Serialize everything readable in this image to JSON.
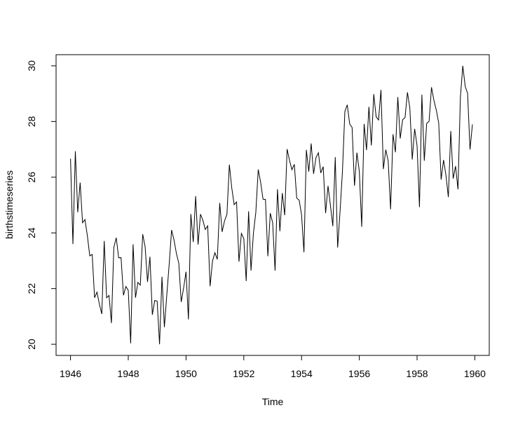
{
  "chart_data": {
    "type": "line",
    "title": "",
    "xlabel": "Time",
    "ylabel": "birthstimeseries",
    "xlim": [
      1945.5,
      1960.5
    ],
    "ylim": [
      19.6,
      30.4
    ],
    "x_ticks": [
      1946,
      1948,
      1950,
      1952,
      1954,
      1956,
      1958,
      1960
    ],
    "x_tick_labels": [
      "1946",
      "1948",
      "1950",
      "1952",
      "1954",
      "1956",
      "1958",
      "1960"
    ],
    "y_ticks": [
      20,
      22,
      24,
      26,
      28,
      30
    ],
    "y_tick_labels": [
      "20",
      "22",
      "24",
      "26",
      "28",
      "30"
    ],
    "grid": false,
    "line_color": "#000000",
    "series": [
      {
        "x_start": 1946,
        "frequency": 12,
        "values": [
          26.663,
          23.598,
          26.931,
          24.74,
          25.806,
          24.364,
          24.477,
          23.901,
          23.175,
          23.227,
          21.672,
          21.87,
          21.439,
          21.089,
          23.709,
          21.669,
          21.752,
          20.761,
          23.479,
          23.824,
          23.105,
          23.11,
          21.759,
          22.073,
          21.937,
          20.035,
          23.59,
          21.672,
          22.222,
          22.123,
          23.95,
          23.504,
          22.238,
          23.142,
          21.059,
          21.573,
          21.548,
          20.0,
          22.424,
          20.615,
          21.761,
          22.874,
          24.104,
          23.748,
          23.262,
          22.907,
          21.519,
          22.025,
          22.604,
          20.894,
          24.677,
          23.673,
          25.32,
          23.583,
          24.671,
          24.454,
          24.122,
          24.252,
          22.084,
          22.991,
          23.287,
          23.049,
          25.076,
          24.037,
          24.43,
          24.667,
          26.451,
          25.618,
          25.014,
          25.11,
          22.964,
          23.981,
          23.798,
          22.27,
          24.775,
          22.646,
          23.988,
          24.737,
          26.276,
          25.816,
          25.21,
          25.199,
          23.162,
          24.707,
          24.364,
          22.644,
          25.565,
          24.062,
          25.431,
          24.635,
          27.009,
          26.606,
          26.268,
          26.462,
          25.246,
          25.18,
          24.657,
          23.304,
          26.982,
          26.199,
          27.21,
          26.122,
          26.706,
          26.878,
          26.152,
          26.379,
          24.712,
          25.688,
          24.99,
          24.239,
          26.721,
          23.475,
          24.767,
          26.219,
          28.361,
          28.599,
          27.914,
          27.784,
          25.693,
          26.881,
          26.217,
          24.218,
          27.914,
          26.975,
          28.527,
          27.139,
          28.982,
          28.169,
          28.056,
          29.136,
          26.291,
          26.987,
          26.589,
          24.848,
          27.543,
          26.896,
          28.878,
          27.39,
          28.065,
          28.141,
          29.048,
          28.484,
          26.634,
          27.735,
          27.132,
          24.924,
          28.963,
          26.589,
          27.931,
          28.009,
          29.229,
          28.759,
          28.405,
          27.945,
          25.912,
          26.619,
          26.076,
          25.286,
          27.66,
          25.951,
          26.398,
          25.565,
          28.865,
          30.0,
          29.261,
          29.012,
          26.992,
          27.897
        ]
      }
    ]
  }
}
